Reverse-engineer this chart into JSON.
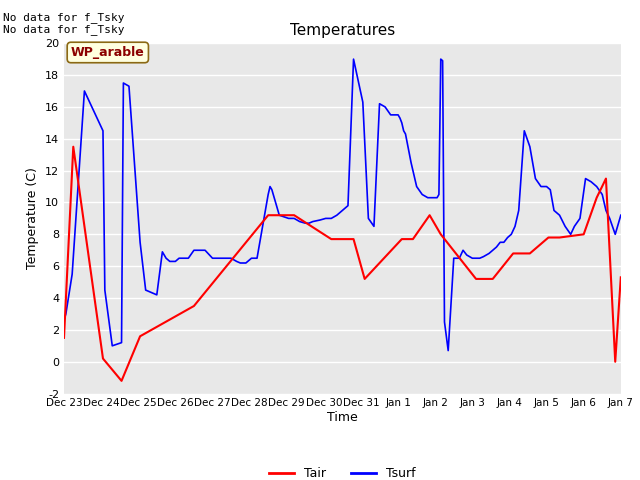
{
  "title": "Temperatures",
  "xlabel": "Time",
  "ylabel": "Temperature (C)",
  "ylim": [
    -2,
    20
  ],
  "fig_bg": "#ffffff",
  "plot_bg": "#e8e8e8",
  "annotations": [
    "No data for f_Tsky",
    "No data for f_Tsky"
  ],
  "wp_label": "WP_arable",
  "legend_labels": [
    "Tair",
    "Tsurf"
  ],
  "tair_color": "#ff0000",
  "tsurf_color": "#0000ff",
  "xtick_labels": [
    "Dec 23",
    "Dec 24",
    "Dec 25",
    "Dec 26",
    "Dec 27",
    "Dec 28",
    "Dec 29",
    "Dec 30",
    "Dec 31",
    "Jan 1",
    "Jan 2",
    "Jan 3",
    "Jan 4",
    "Jan 5",
    "Jan 6",
    "Jan 7"
  ],
  "ytick_values": [
    -2,
    0,
    2,
    4,
    6,
    8,
    10,
    12,
    14,
    16,
    18,
    20
  ],
  "tair_x": [
    0.0,
    0.25,
    1.05,
    1.55,
    2.05,
    3.5,
    5.5,
    6.2,
    7.2,
    7.8,
    8.1,
    9.1,
    9.4,
    9.85,
    10.15,
    11.1,
    11.55,
    12.1,
    12.55,
    13.05,
    13.35,
    14.0,
    14.35,
    14.6,
    14.85,
    15.0
  ],
  "tair_y": [
    1.5,
    13.5,
    0.2,
    -1.2,
    1.6,
    3.5,
    9.2,
    9.2,
    7.7,
    7.7,
    5.2,
    7.7,
    7.7,
    9.2,
    8.0,
    5.2,
    5.2,
    6.8,
    6.8,
    7.8,
    7.8,
    8.0,
    10.3,
    11.5,
    0.0,
    5.3
  ],
  "tsurf_x": [
    0.0,
    0.05,
    0.22,
    0.55,
    1.05,
    1.1,
    1.3,
    1.55,
    1.6,
    1.75,
    2.05,
    2.2,
    2.5,
    2.65,
    2.75,
    2.85,
    3.0,
    3.05,
    3.1,
    3.2,
    3.35,
    3.5,
    3.65,
    3.8,
    4.0,
    4.1,
    4.2,
    4.35,
    4.5,
    4.65,
    4.75,
    4.9,
    5.05,
    5.2,
    5.5,
    5.55,
    5.6,
    5.8,
    6.05,
    6.2,
    6.35,
    6.5,
    6.6,
    6.7,
    6.9,
    7.05,
    7.1,
    7.2,
    7.35,
    7.5,
    7.65,
    7.8,
    8.05,
    8.2,
    8.35,
    8.5,
    8.65,
    8.8,
    9.0,
    9.05,
    9.1,
    9.15,
    9.2,
    9.35,
    9.5,
    9.65,
    9.8,
    9.85,
    10.05,
    10.1,
    10.15,
    10.2,
    10.25,
    10.35,
    10.5,
    10.65,
    10.75,
    10.85,
    11.0,
    11.1,
    11.2,
    11.3,
    11.45,
    11.55,
    11.65,
    11.75,
    11.85,
    11.95,
    12.05,
    12.15,
    12.25,
    12.4,
    12.55,
    12.7,
    12.85,
    13.0,
    13.1,
    13.2,
    13.35,
    13.5,
    13.65,
    13.75,
    13.9,
    14.05,
    14.2,
    14.35,
    14.5,
    14.6,
    14.7,
    14.85,
    15.0
  ],
  "tsurf_y": [
    2.6,
    3.0,
    5.5,
    17.0,
    14.5,
    4.5,
    1.0,
    1.2,
    17.5,
    17.3,
    7.5,
    4.5,
    4.2,
    6.9,
    6.5,
    6.3,
    6.3,
    6.4,
    6.5,
    6.5,
    6.5,
    7.0,
    7.0,
    7.0,
    6.5,
    6.5,
    6.5,
    6.5,
    6.5,
    6.3,
    6.2,
    6.2,
    6.5,
    6.5,
    10.5,
    11.0,
    10.8,
    9.2,
    9.0,
    9.0,
    8.8,
    8.7,
    8.7,
    8.8,
    8.9,
    9.0,
    9.0,
    9.0,
    9.2,
    9.5,
    9.8,
    19.0,
    16.3,
    9.0,
    8.5,
    16.2,
    16.0,
    15.5,
    15.5,
    15.3,
    15.0,
    14.5,
    14.3,
    12.5,
    11.0,
    10.5,
    10.3,
    10.3,
    10.3,
    10.5,
    19.0,
    18.9,
    2.5,
    0.7,
    6.5,
    6.5,
    7.0,
    6.7,
    6.5,
    6.5,
    6.5,
    6.6,
    6.8,
    7.0,
    7.2,
    7.5,
    7.5,
    7.8,
    8.0,
    8.5,
    9.5,
    14.5,
    13.5,
    11.5,
    11.0,
    11.0,
    10.8,
    9.5,
    9.2,
    8.5,
    8.0,
    8.5,
    9.0,
    11.5,
    11.3,
    11.0,
    10.5,
    9.5,
    9.0,
    8.0,
    9.2
  ]
}
